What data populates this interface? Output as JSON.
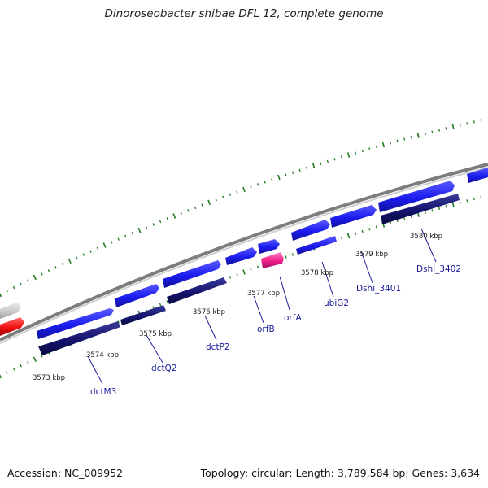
{
  "title": "Dinoroseobacter shibae DFL 12, complete genome",
  "footer": {
    "accession": "Accession: NC_009952",
    "summary": "Topology: circular; Length: 3,789,584 bp; Genes: 3,634"
  },
  "scale": [
    {
      "label": "3573 kbp",
      "kbp": 3573
    },
    {
      "label": "3574 kbp",
      "kbp": 3574
    },
    {
      "label": "3575 kbp",
      "kbp": 3575
    },
    {
      "label": "3576 kbp",
      "kbp": 3576
    },
    {
      "label": "3577 kbp",
      "kbp": 3577
    },
    {
      "label": "3578 kbp",
      "kbp": 3578
    },
    {
      "label": "3579 kbp",
      "kbp": 3579
    },
    {
      "label": "3580 kbp",
      "kbp": 3580
    }
  ],
  "gene_labels": [
    {
      "name": "dctM3"
    },
    {
      "name": "dctQ2"
    },
    {
      "name": "dctP2"
    },
    {
      "name": "orfB"
    },
    {
      "name": "orfA"
    },
    {
      "name": "ubiG2"
    },
    {
      "name": "Dshi_3401"
    },
    {
      "name": "Dshi_3402"
    }
  ],
  "colors": {
    "forward": "#1c1cf0",
    "reverse": "#14146e",
    "rna": "#ee1f8a",
    "highlight": "#ee1111",
    "other": "#c8c8c8",
    "backbone": "#7d7d7d",
    "ticks": "#1f7a1f",
    "label": "#1a1a9a"
  }
}
